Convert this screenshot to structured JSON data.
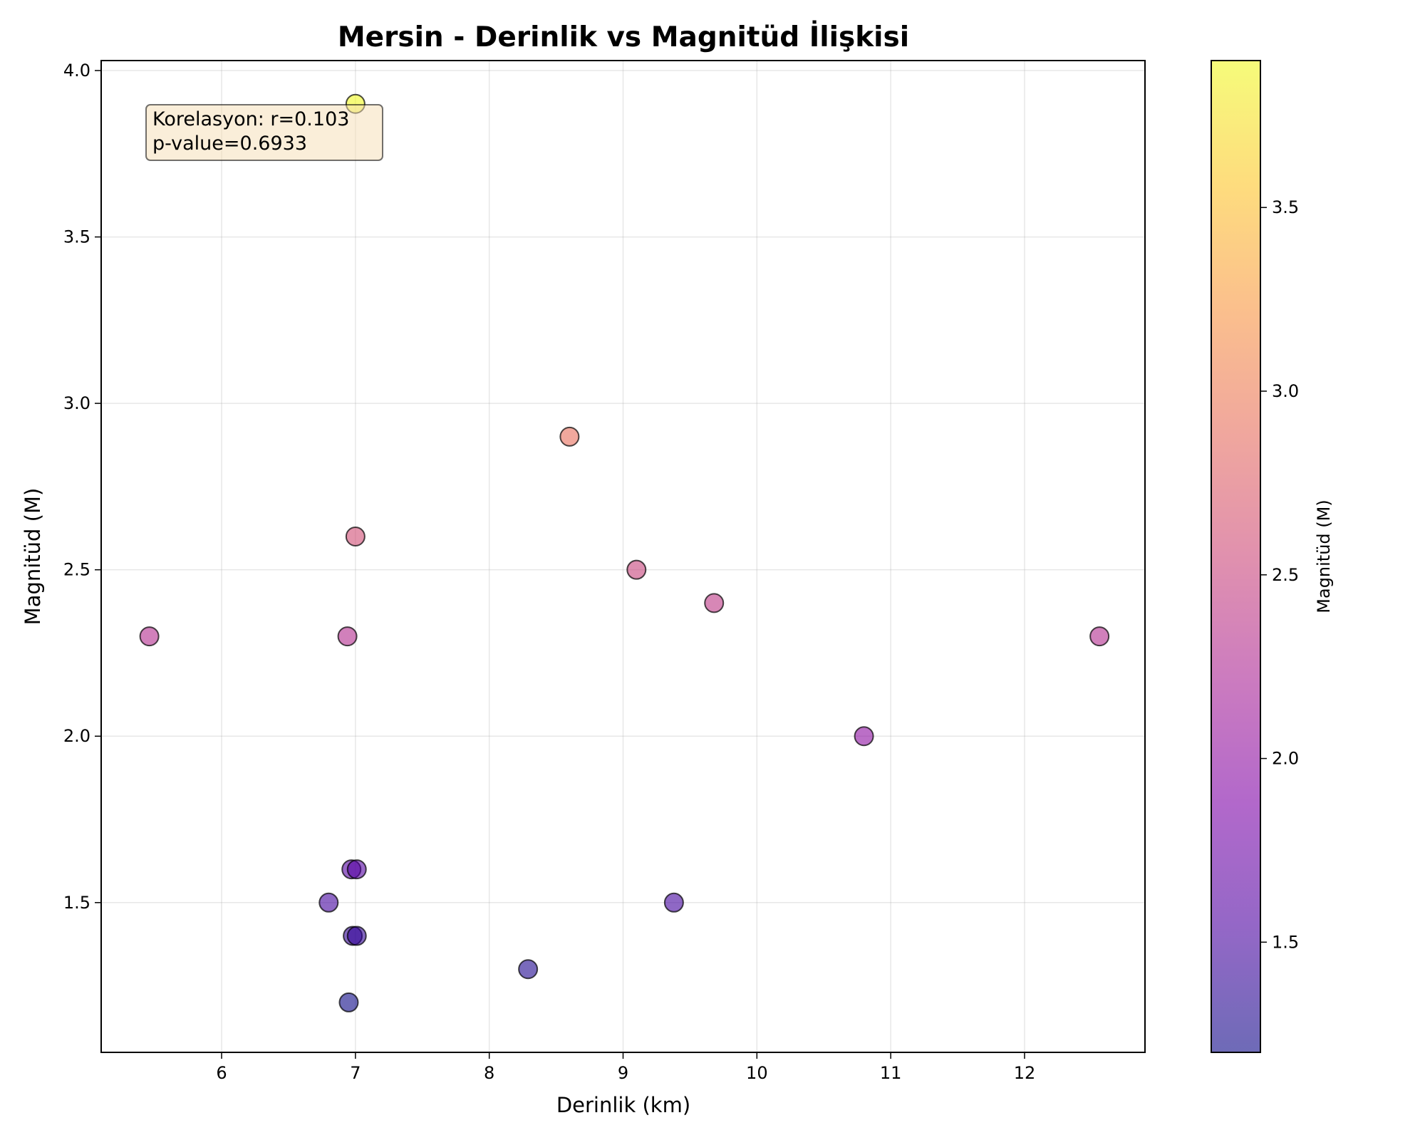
{
  "chart_data": {
    "type": "scatter",
    "title": "Mersin - Derinlik vs Magnitüd İlişkisi",
    "xlabel": "Derinlik (km)",
    "ylabel": "Magnitüd (M)",
    "xlim": [
      5.1,
      12.9
    ],
    "ylim": [
      1.05,
      4.03
    ],
    "xticks": [
      "6",
      "7",
      "8",
      "9",
      "10",
      "11",
      "12"
    ],
    "yticks": [
      "1.5",
      "2.0",
      "2.5",
      "3.0",
      "3.5",
      "4.0"
    ],
    "grid": true,
    "colormap": "plasma",
    "colorbar": {
      "label": "Magnitüd (M)",
      "range": [
        1.2,
        3.9
      ],
      "ticks": [
        "1.5",
        "2.0",
        "2.5",
        "3.0",
        "3.5"
      ]
    },
    "annotation": {
      "line1": "Korelasyon: r=0.103",
      "line2": "p-value=0.6933",
      "position": "top-left"
    },
    "points": [
      {
        "x": 5.46,
        "y": 2.3
      },
      {
        "x": 6.8,
        "y": 1.5
      },
      {
        "x": 6.94,
        "y": 2.3
      },
      {
        "x": 6.95,
        "y": 1.2
      },
      {
        "x": 6.97,
        "y": 1.6
      },
      {
        "x": 6.98,
        "y": 1.4
      },
      {
        "x": 7.0,
        "y": 3.9
      },
      {
        "x": 7.0,
        "y": 2.6
      },
      {
        "x": 7.01,
        "y": 1.6
      },
      {
        "x": 7.01,
        "y": 1.4
      },
      {
        "x": 8.29,
        "y": 1.3
      },
      {
        "x": 8.6,
        "y": 2.9
      },
      {
        "x": 9.1,
        "y": 2.5
      },
      {
        "x": 9.38,
        "y": 1.5
      },
      {
        "x": 9.68,
        "y": 2.4
      },
      {
        "x": 10.8,
        "y": 2.0
      },
      {
        "x": 12.56,
        "y": 2.3
      }
    ]
  }
}
